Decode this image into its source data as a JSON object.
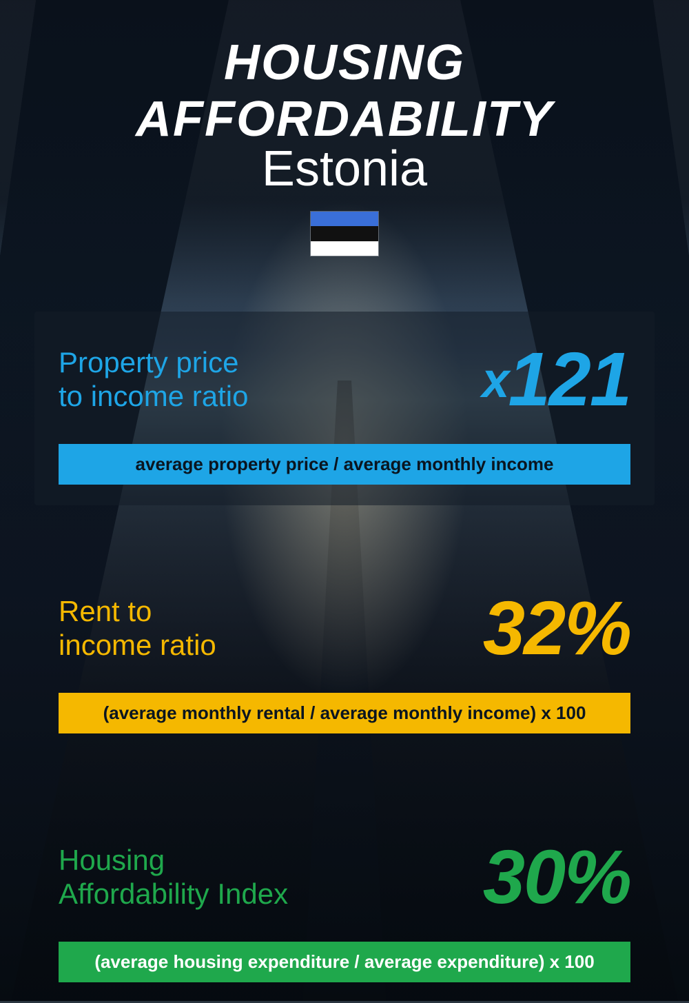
{
  "header": {
    "title": "HOUSING AFFORDABILITY",
    "subtitle": "Estonia",
    "flag_colors": [
      "#3a6fd8",
      "#111111",
      "#ffffff"
    ]
  },
  "metrics": [
    {
      "label": "Property price\nto income ratio",
      "value_prefix": "x",
      "value": "121",
      "formula": "average property price / average monthly income",
      "accent_color": "#1ea5e6",
      "formula_text_color": "#0a1520",
      "boxed": true
    },
    {
      "label": "Rent to\nincome ratio",
      "value_prefix": "",
      "value": "32%",
      "formula": "(average monthly rental / average monthly income) x 100",
      "accent_color": "#f5b800",
      "formula_text_color": "#0a1520",
      "boxed": false
    },
    {
      "label": "Housing\nAffordability Index",
      "value_prefix": "",
      "value": "30%",
      "formula": "(average housing expenditure / average expenditure) x 100",
      "accent_color": "#1fa84c",
      "formula_text_color": "#ffffff",
      "boxed": false
    }
  ],
  "style": {
    "title_fontsize": 72,
    "label_fontsize": 42,
    "value_fontsize": 110,
    "formula_fontsize": 26,
    "background_gradient": [
      "#2a3540",
      "#0a1018"
    ]
  }
}
